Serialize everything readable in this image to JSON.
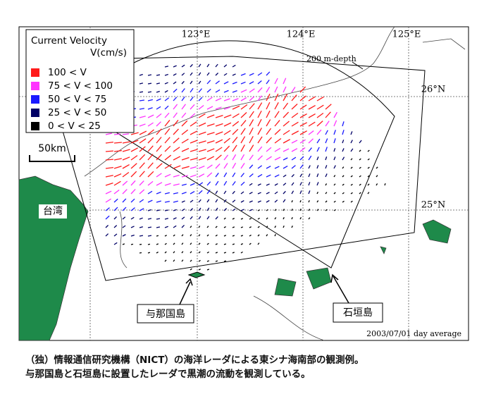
{
  "legend": {
    "title": "Current Velocity",
    "unit": "V(cm/s)",
    "items": [
      {
        "label": "100 < V",
        "color": "#ff1a1a"
      },
      {
        "label": "75 < V < 100",
        "color": "#ff33ff"
      },
      {
        "label": "50 < V < 75",
        "color": "#1a1aff"
      },
      {
        "label": "25 < V < 50",
        "color": "#000066"
      },
      {
        "label": "0 < V < 25",
        "color": "#000000"
      }
    ]
  },
  "scale": "50km",
  "axes": {
    "lon": [
      "123°E",
      "124°E",
      "125°E"
    ],
    "lat": [
      "26°N",
      "25°N"
    ]
  },
  "labels": {
    "taiwan": "台湾",
    "depth": "200 m-depth",
    "yonaguni": "与那国島",
    "ishigaki": "石垣島",
    "date": "2003/07/01 day average"
  },
  "caption": [
    "（独）情報通信研究機構（NICT）の海洋レーダによる東シナ海南部の観測例。",
    "与那国島と石垣島に設置したレーダで黒潮の流動を観測している。"
  ]
}
